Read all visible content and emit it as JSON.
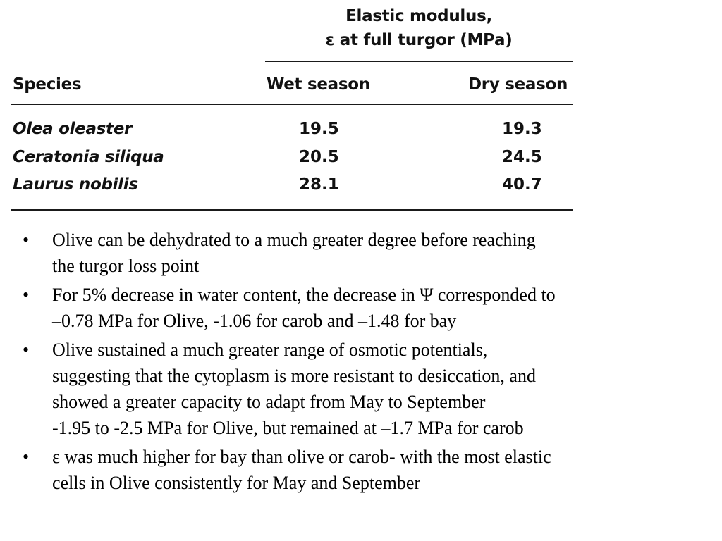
{
  "table": {
    "group_header": {
      "line1": "Elastic modulus,",
      "line2": "ε at full turgor (MPa)"
    },
    "columns": {
      "species": "Species",
      "wet": "Wet season",
      "dry": "Dry season"
    },
    "rows": [
      {
        "species": "Olea oleaster",
        "wet": "19.5",
        "dry": "19.3"
      },
      {
        "species": "Ceratonia siliqua",
        "wet": "20.5",
        "dry": "24.5"
      },
      {
        "species": "Laurus nobilis",
        "wet": "28.1",
        "dry": "40.7"
      }
    ]
  },
  "bullets": [
    {
      "marker": "•",
      "lines": [
        "Olive can be dehydrated to a much greater degree before reaching",
        "the turgor loss point"
      ]
    },
    {
      "marker": "•",
      "lines": [
        "For 5% decrease in water content, the decrease in Ψ corresponded to",
        "–0.78 MPa for Olive, -1.06 for carob and –1.48 for bay"
      ]
    },
    {
      "marker": "•",
      "lines": [
        "Olive sustained a much greater range of osmotic potentials,",
        "suggesting that the cytoplasm is more resistant to desiccation, and",
        "showed a greater capacity to adapt from May to September",
        "-1.95 to -2.5 MPa for Olive, but remained at –1.7 MPa for carob"
      ]
    },
    {
      "marker": "•",
      "lines": [
        "ε was much higher for bay than olive or carob- with the most elastic",
        "cells in Olive consistently for May and September"
      ]
    }
  ]
}
